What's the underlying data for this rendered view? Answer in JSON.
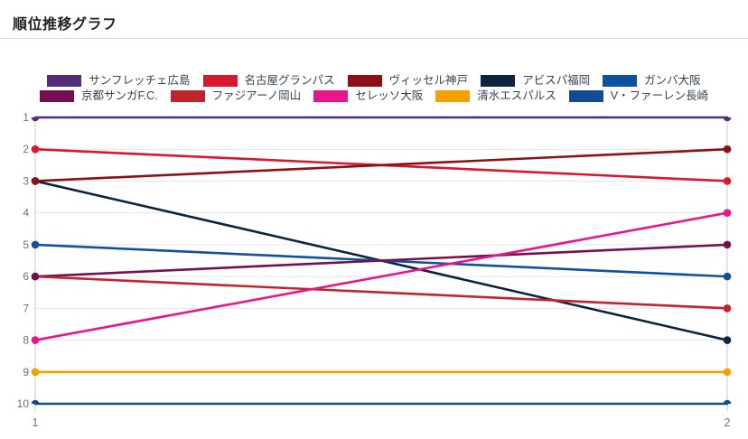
{
  "page": {
    "title": "順位推移グラフ"
  },
  "colors": {
    "background": "#ffffff",
    "title_text": "#232323",
    "divider": "#d9d9d9",
    "grid": "#e4e4e4",
    "axis_tick": "#c9c9c9",
    "axis_text": "#707070",
    "legend_text": "#39434f"
  },
  "chart_data": {
    "type": "line",
    "title": "順位推移グラフ",
    "xlabel": "",
    "ylabel": "",
    "x": [
      1,
      2
    ],
    "x_tick_labels": [
      "1",
      "2"
    ],
    "y_tick_labels": [
      "1",
      "2",
      "3",
      "4",
      "5",
      "6",
      "7",
      "8",
      "9",
      "10"
    ],
    "y_axis": {
      "min": 1,
      "max": 10,
      "inverted": true,
      "meaning": "rank (1 = top)"
    },
    "grid": true,
    "legend_position": "top",
    "legend_rows": [
      5,
      5
    ],
    "series": [
      {
        "name": "サンフレッチェ広島",
        "color": "#542b78",
        "values": [
          1,
          1
        ]
      },
      {
        "name": "名古屋グランパス",
        "color": "#d7182d",
        "values": [
          2,
          3
        ]
      },
      {
        "name": "ヴィッセル神戸",
        "color": "#8e1016",
        "values": [
          3,
          2
        ]
      },
      {
        "name": "アビスパ福岡",
        "color": "#0d2440",
        "values": [
          3,
          8
        ]
      },
      {
        "name": "ガンバ大阪",
        "color": "#10519f",
        "values": [
          5,
          6
        ]
      },
      {
        "name": "京都サンガF.C.",
        "color": "#731150",
        "values": [
          6,
          5
        ]
      },
      {
        "name": "ファジアーノ岡山",
        "color": "#c2242c",
        "values": [
          6,
          7
        ]
      },
      {
        "name": "セレッソ大阪",
        "color": "#e8158c",
        "values": [
          8,
          4
        ]
      },
      {
        "name": "清水エスパルス",
        "color": "#f4a100",
        "values": [
          9,
          9
        ]
      },
      {
        "name": "V・ファーレン長崎",
        "color": "#134a94",
        "values": [
          10,
          10
        ]
      }
    ]
  }
}
